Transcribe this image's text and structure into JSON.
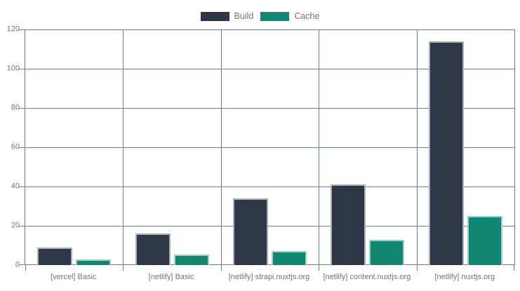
{
  "page": {
    "background": "#ffffff"
  },
  "legend": {
    "items": [
      {
        "label": "Build",
        "color": "#2d3748"
      },
      {
        "label": "Cache",
        "color": "#118773"
      }
    ]
  },
  "chart_data": {
    "type": "bar",
    "title": "",
    "categories": [
      "[vercel] Basic",
      "[netlify] Basic",
      "[netlify] strapi.nuxtjs.org",
      "[netlify] content.nuxtjs.org",
      "[netlify] nuxtjs.org"
    ],
    "series": [
      {
        "name": "Build",
        "color": "#2d3748",
        "values": [
          9,
          16,
          34,
          41,
          114
        ]
      },
      {
        "name": "Cache",
        "color": "#118773",
        "values": [
          3,
          5.5,
          7,
          13,
          25
        ]
      }
    ],
    "xlabel": "",
    "ylabel": "",
    "ylim": [
      0,
      120
    ],
    "yticks": [
      0,
      20,
      40,
      60,
      80,
      100,
      120
    ],
    "grid": true,
    "legend_position": "top-center",
    "colors": {
      "grid": "#6b8081",
      "axis": "#6b8081",
      "tick_label": "#757575",
      "bar_border": "rgba(255,255,255,0.6)"
    }
  }
}
